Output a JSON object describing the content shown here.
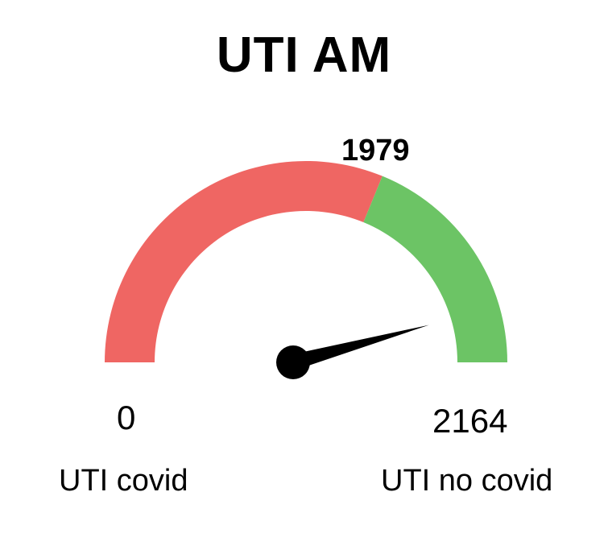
{
  "chart_data": {
    "type": "gauge",
    "title": "UTI AM",
    "min": 0,
    "max": 2164,
    "value": 1979,
    "value_label": "1979",
    "min_label": "0",
    "max_label": "2164",
    "min_caption": "UTI covid",
    "max_caption": "UTI no covid",
    "segments": [
      {
        "from": 0,
        "to": 1350,
        "color": "#ef6663"
      },
      {
        "from": 1350,
        "to": 2164,
        "color": "#6cc465"
      }
    ],
    "needle_color": "#000000"
  }
}
